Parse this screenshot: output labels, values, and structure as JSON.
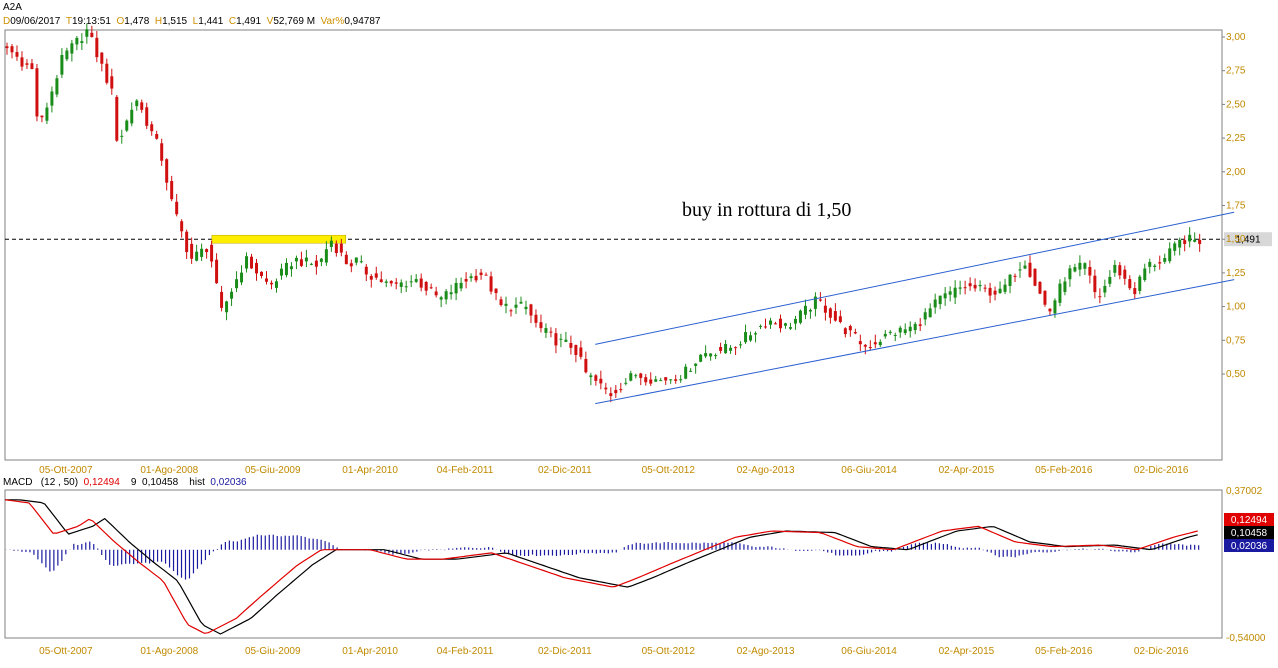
{
  "header": {
    "symbol": "A2A",
    "quote": [
      {
        "key": "D",
        "value": "09/06/2017"
      },
      {
        "key": "T",
        "value": "19:13:51"
      },
      {
        "key": "O",
        "value": "1,478"
      },
      {
        "key": "H",
        "value": "1,515"
      },
      {
        "key": "L",
        "value": "1,441"
      },
      {
        "key": "C",
        "value": "1,491"
      },
      {
        "key": "V",
        "value": "52,769 M"
      },
      {
        "key": "Var%",
        "value": "0,94787"
      }
    ]
  },
  "macd_header": {
    "name": "MACD",
    "params": "(12 , 50)",
    "macd_value": "0,12494",
    "signal_label": "9",
    "signal_value": "0,10458",
    "hist_label": "hist",
    "hist_value": "0,02036"
  },
  "colors": {
    "up": "#1a8c1a",
    "down": "#d01010",
    "channel": "#2a5fd0",
    "highlight": "#ffee00",
    "macd": "#e00000",
    "signal": "#000000",
    "hist": "#1a1aa0",
    "axis": "#c08a00"
  },
  "chart_data": [
    {
      "type": "candlestick",
      "title": "A2A",
      "x_range": [
        "2007-07",
        "2017-06"
      ],
      "x_ticks": [
        "05-Ott-2007",
        "01-Ago-2008",
        "05-Giu-2009",
        "01-Apr-2010",
        "04-Feb-2011",
        "02-Dic-2011",
        "05-Ott-2012",
        "02-Ago-2013",
        "06-Giu-2014",
        "02-Apr-2015",
        "05-Feb-2016",
        "02-Dic-2016"
      ],
      "y_ticks": [
        "3,00",
        "2,75",
        "2,50",
        "2,25",
        "2,00",
        "1,75",
        "1,50",
        "1,25",
        "1,00",
        "0,75",
        "0,50"
      ],
      "y_range": [
        0.3,
        3.1
      ],
      "grid": false,
      "price_path": [
        [
          0,
          2.95
        ],
        [
          0.025,
          2.75
        ],
        [
          0.03,
          2.3
        ],
        [
          0.05,
          2.85
        ],
        [
          0.07,
          3.05
        ],
        [
          0.09,
          2.6
        ],
        [
          0.095,
          2.2
        ],
        [
          0.11,
          2.55
        ],
        [
          0.13,
          2.15
        ],
        [
          0.14,
          1.75
        ],
        [
          0.155,
          1.35
        ],
        [
          0.17,
          1.45
        ],
        [
          0.18,
          0.95
        ],
        [
          0.2,
          1.35
        ],
        [
          0.22,
          1.15
        ],
        [
          0.24,
          1.35
        ],
        [
          0.26,
          1.3
        ],
        [
          0.27,
          1.5
        ],
        [
          0.285,
          1.3
        ],
        [
          0.29,
          1.35
        ],
        [
          0.3,
          1.25
        ],
        [
          0.32,
          1.15
        ],
        [
          0.34,
          1.2
        ],
        [
          0.36,
          1.05
        ],
        [
          0.38,
          1.2
        ],
        [
          0.395,
          1.25
        ],
        [
          0.41,
          1.0
        ],
        [
          0.43,
          1.0
        ],
        [
          0.44,
          0.85
        ],
        [
          0.455,
          0.75
        ],
        [
          0.47,
          0.7
        ],
        [
          0.48,
          0.5
        ],
        [
          0.5,
          0.35
        ],
        [
          0.52,
          0.5
        ],
        [
          0.54,
          0.45
        ],
        [
          0.56,
          0.5
        ],
        [
          0.575,
          0.65
        ],
        [
          0.6,
          0.7
        ],
        [
          0.63,
          0.9
        ],
        [
          0.645,
          0.85
        ],
        [
          0.67,
          1.05
        ],
        [
          0.69,
          0.85
        ],
        [
          0.71,
          0.7
        ],
        [
          0.73,
          0.8
        ],
        [
          0.75,
          0.85
        ],
        [
          0.77,
          1.05
        ],
        [
          0.79,
          1.15
        ],
        [
          0.82,
          1.1
        ],
        [
          0.84,
          1.35
        ],
        [
          0.86,
          0.95
        ],
        [
          0.875,
          1.25
        ],
        [
          0.89,
          1.3
        ],
        [
          0.9,
          1.05
        ],
        [
          0.915,
          1.3
        ],
        [
          0.93,
          1.1
        ],
        [
          0.94,
          1.3
        ],
        [
          0.955,
          1.35
        ],
        [
          0.97,
          1.5
        ],
        [
          0.98,
          1.49
        ]
      ],
      "annotations": {
        "text": "buy in rottura di 1,50",
        "last_price_label": "1,491",
        "level": 1.5
      },
      "channel": {
        "upper": [
          [
            0.485,
            0.72
          ],
          [
            1.01,
            1.7
          ]
        ],
        "lower": [
          [
            0.485,
            0.28
          ],
          [
            1.01,
            1.2
          ]
        ]
      },
      "resistance_box": {
        "x_from": 0.17,
        "x_to": 0.28,
        "level": 1.5
      }
    },
    {
      "type": "line",
      "title": "MACD",
      "y_ticks": [
        "0,37002",
        "-0,54000"
      ],
      "y_range": [
        -0.54,
        0.37002
      ],
      "series": [
        {
          "name": "MACD",
          "color": "#e00000"
        },
        {
          "name": "9",
          "color": "#000000"
        },
        {
          "name": "hist",
          "color": "#1a1aa0"
        }
      ],
      "value_labels": [
        {
          "text": "0,12494",
          "bg": "#e00000",
          "fg": "#ffffff"
        },
        {
          "text": "0,10458",
          "bg": "#000000",
          "fg": "#ffffff"
        },
        {
          "text": "0,02036",
          "bg": "#1a1aa0",
          "fg": "#ffffff"
        }
      ],
      "macd_path": [
        [
          0,
          0.32
        ],
        [
          0.02,
          0.3
        ],
        [
          0.04,
          0.1
        ],
        [
          0.06,
          0.15
        ],
        [
          0.07,
          0.2
        ],
        [
          0.09,
          0.05
        ],
        [
          0.11,
          -0.08
        ],
        [
          0.13,
          -0.2
        ],
        [
          0.15,
          -0.48
        ],
        [
          0.165,
          -0.54
        ],
        [
          0.19,
          -0.44
        ],
        [
          0.21,
          -0.3
        ],
        [
          0.24,
          -0.1
        ],
        [
          0.26,
          0.0
        ],
        [
          0.3,
          0.0
        ],
        [
          0.33,
          -0.06
        ],
        [
          0.36,
          -0.06
        ],
        [
          0.4,
          -0.02
        ],
        [
          0.43,
          -0.1
        ],
        [
          0.46,
          -0.18
        ],
        [
          0.5,
          -0.24
        ],
        [
          0.52,
          -0.18
        ],
        [
          0.55,
          -0.08
        ],
        [
          0.6,
          0.08
        ],
        [
          0.63,
          0.12
        ],
        [
          0.67,
          0.11
        ],
        [
          0.7,
          0.02
        ],
        [
          0.73,
          0.0
        ],
        [
          0.77,
          0.12
        ],
        [
          0.8,
          0.15
        ],
        [
          0.83,
          0.05
        ],
        [
          0.86,
          0.02
        ],
        [
          0.9,
          0.03
        ],
        [
          0.93,
          0.0
        ],
        [
          0.96,
          0.08
        ],
        [
          0.98,
          0.12
        ]
      ]
    }
  ]
}
